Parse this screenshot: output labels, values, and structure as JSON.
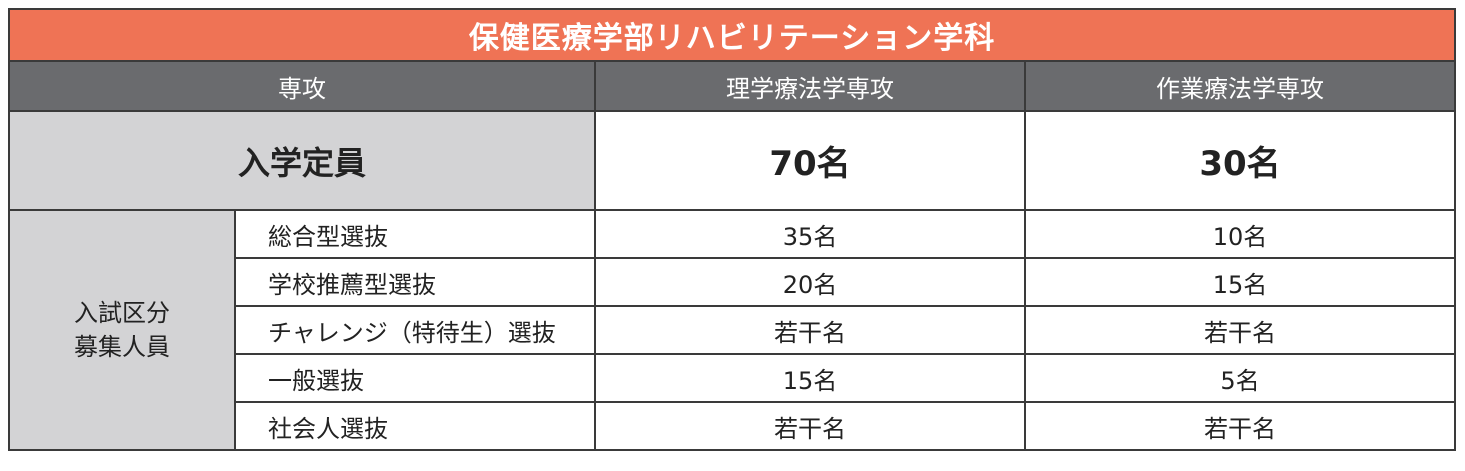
{
  "title": "保健医療学部リハビリテーション学科",
  "header": {
    "label": "専攻",
    "col1": "理学療法学専攻",
    "col2": "作業療法学専攻"
  },
  "capacity": {
    "label": "入学定員",
    "col1": "70名",
    "col2": "30名"
  },
  "group": {
    "line1": "入試区分",
    "line2": "募集人員"
  },
  "rows": [
    {
      "label": "総合型選抜",
      "col1": "35名",
      "col2": "10名"
    },
    {
      "label": "学校推薦型選抜",
      "col1": "20名",
      "col2": "15名"
    },
    {
      "label": "チャレンジ（特待生）選抜",
      "col1": "若干名",
      "col2": "若干名"
    },
    {
      "label": "一般選抜",
      "col1": "15名",
      "col2": "5名"
    },
    {
      "label": "社会人選抜",
      "col1": "若干名",
      "col2": "若干名"
    }
  ],
  "colors": {
    "title_bg": "#ef7355",
    "header_bg": "#6a6b6e",
    "label_bg": "#d3d3d5"
  }
}
